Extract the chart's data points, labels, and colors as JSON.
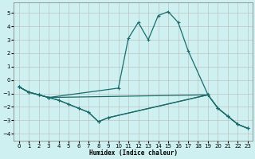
{
  "xlabel": "Humidex (Indice chaleur)",
  "xlim": [
    -0.5,
    23.5
  ],
  "ylim": [
    -4.5,
    5.8
  ],
  "yticks": [
    -4,
    -3,
    -2,
    -1,
    0,
    1,
    2,
    3,
    4,
    5
  ],
  "xticks": [
    0,
    1,
    2,
    3,
    4,
    5,
    6,
    7,
    8,
    9,
    10,
    11,
    12,
    13,
    14,
    15,
    16,
    17,
    18,
    19,
    20,
    21,
    22,
    23
  ],
  "background_color": "#cff0f0",
  "grid_color": "#b8b8b8",
  "line_color": "#1a6b6b",
  "line1_x": [
    0,
    1,
    2,
    3,
    10,
    11,
    12,
    13,
    14,
    15,
    16,
    17,
    19
  ],
  "line1_y": [
    -0.5,
    -0.9,
    -1.1,
    -1.3,
    -0.6,
    3.1,
    4.3,
    3.0,
    4.8,
    5.1,
    4.3,
    2.2,
    -1.1
  ],
  "line2_x": [
    0,
    1,
    2,
    3,
    4,
    5,
    6,
    7,
    8,
    9,
    19,
    20,
    21,
    22,
    23
  ],
  "line2_y": [
    -0.5,
    -0.9,
    -1.1,
    -1.3,
    -1.5,
    -1.8,
    -2.1,
    -2.4,
    -3.1,
    -2.8,
    -1.1,
    -2.1,
    -2.7,
    -3.3,
    -3.6
  ],
  "line3_x": [
    0,
    1,
    2,
    3,
    19,
    20,
    21,
    22,
    23
  ],
  "line3_y": [
    -0.5,
    -0.9,
    -1.1,
    -1.3,
    -1.1,
    -2.1,
    -2.7,
    -3.3,
    -3.6
  ],
  "line4_x": [
    0,
    1,
    2,
    3,
    4,
    5,
    6,
    7,
    8,
    9,
    19,
    20,
    21,
    22,
    23
  ],
  "line4_y": [
    -0.5,
    -0.9,
    -1.1,
    -1.3,
    -1.5,
    -1.8,
    -2.1,
    -2.4,
    -3.1,
    -2.8,
    -1.1,
    -2.1,
    -2.7,
    -3.3,
    -3.6
  ]
}
